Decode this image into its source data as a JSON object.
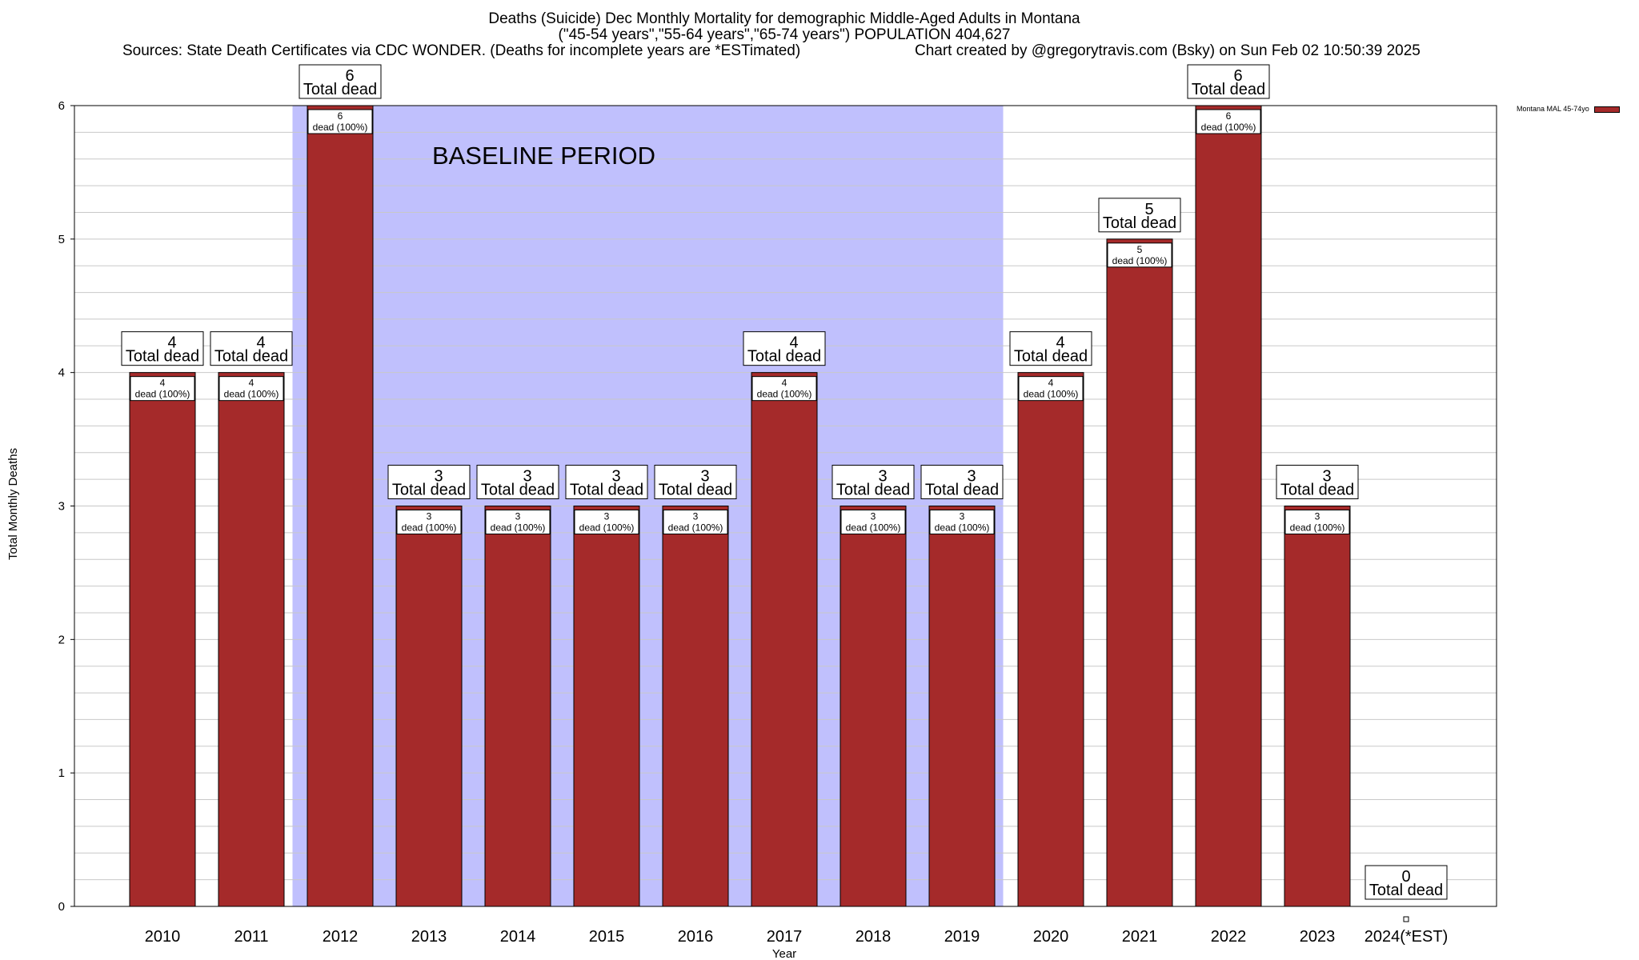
{
  "title": {
    "line1": "Deaths (Suicide) Dec Monthly Mortality for demographic Middle-Aged Adults in Montana",
    "line2": "(\"45-54 years\",\"55-64 years\",\"65-74 years\") POPULATION 404,627",
    "sources": "Sources: State Death Certificates via CDC WONDER. (Deaths for incomplete years are *ESTimated)",
    "credit": "Chart created by @gregorytravis.com (Bsky) on Sun Feb 02 10:50:39 2025"
  },
  "legend": {
    "label": "Montana MAL 45-74yo"
  },
  "colors": {
    "bar": "#a52a2a",
    "baseline": "#c0c0fd",
    "grid": "#c8c8c8"
  },
  "chart_data": {
    "type": "bar",
    "xlabel": "Year",
    "ylabel": "Total Monthly Deaths",
    "ylim": [
      0,
      6
    ],
    "yticks": [
      0,
      1,
      2,
      3,
      4,
      5,
      6
    ],
    "categories": [
      "2010",
      "2011",
      "2012",
      "2013",
      "2014",
      "2015",
      "2016",
      "2017",
      "2018",
      "2019",
      "2020",
      "2021",
      "2022",
      "2023",
      "2024(*EST)"
    ],
    "series": [
      {
        "name": "Montana MAL 45-74yo",
        "values": [
          4,
          4,
          6,
          3,
          3,
          3,
          3,
          4,
          3,
          3,
          4,
          5,
          6,
          3,
          0
        ]
      }
    ],
    "total_label_suffix": "Total dead",
    "inner_labels": [
      "4",
      "4",
      "6",
      "3",
      "3",
      "3",
      "3",
      "4",
      "3",
      "3",
      "4",
      "5",
      "6",
      "3",
      ""
    ],
    "inner_label_suffix": "dead (100%)",
    "baseline": {
      "label": "BASELINE PERIOD",
      "start_category": "2012",
      "end_category": "2019"
    }
  }
}
